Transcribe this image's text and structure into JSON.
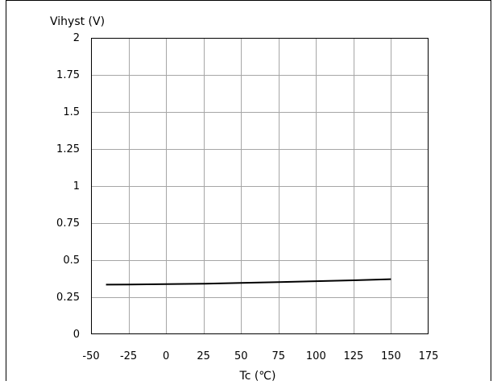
{
  "chart_data": {
    "type": "line",
    "ylabel": "Vihyst (V)",
    "xlabel": "Tc (℃)",
    "xlim": [
      -50,
      175
    ],
    "ylim": [
      0,
      2
    ],
    "x_ticks": [
      -50,
      -25,
      0,
      25,
      50,
      75,
      100,
      125,
      150,
      175
    ],
    "y_ticks": [
      0,
      0.25,
      0.5,
      0.75,
      1,
      1.25,
      1.5,
      1.75,
      2
    ],
    "x_tick_labels": [
      "-50",
      "-25",
      "0",
      "25",
      "50",
      "75",
      "100",
      "125",
      "150",
      "175"
    ],
    "y_tick_labels": [
      "0",
      "0.25",
      "0.5",
      "0.75",
      "1",
      "1.25",
      "1.5",
      "1.75",
      "2"
    ],
    "grid": true,
    "legend": "none",
    "series": [
      {
        "x": [
          -40,
          -25,
          0,
          25,
          50,
          75,
          100,
          125,
          150
        ],
        "y": [
          0.335,
          0.336,
          0.338,
          0.341,
          0.346,
          0.352,
          0.358,
          0.364,
          0.372
        ],
        "color": "#000000"
      }
    ]
  }
}
